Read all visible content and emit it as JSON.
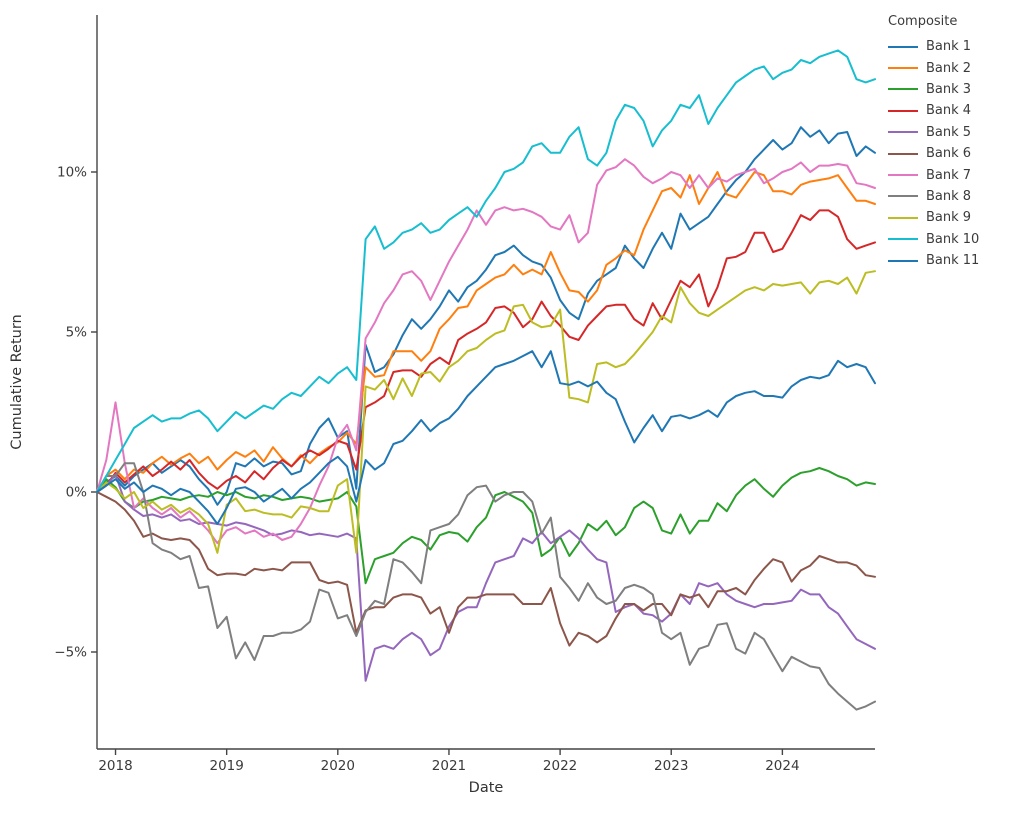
{
  "page": {
    "background": "#ffffff"
  },
  "axes": {
    "x": {
      "label": "Date",
      "tick_labels": [
        "2018",
        "2019",
        "2020",
        "2021",
        "2022",
        "2023",
        "2024"
      ]
    },
    "y": {
      "label": "Cumulative Return",
      "tick_labels": [
        "10%",
        "5%",
        "0%",
        "−5%"
      ]
    }
  },
  "legend": {
    "title": "Composite",
    "items": [
      {
        "label": "Bank 1",
        "color": "#1f77b4"
      },
      {
        "label": "Bank 2",
        "color": "#ff7f0e"
      },
      {
        "label": "Bank 3",
        "color": "#2ca02c"
      },
      {
        "label": "Bank 4",
        "color": "#d62728"
      },
      {
        "label": "Bank 5",
        "color": "#9467bd"
      },
      {
        "label": "Bank 6",
        "color": "#8c564b"
      },
      {
        "label": "Bank 7",
        "color": "#e377c2"
      },
      {
        "label": "Bank 8",
        "color": "#7f7f7f"
      },
      {
        "label": "Bank 9",
        "color": "#bcbd22"
      },
      {
        "label": "Bank 10",
        "color": "#17becf"
      },
      {
        "label": "Bank 11",
        "color": "#1f77b4"
      }
    ]
  },
  "chart_data": {
    "type": "line",
    "title": "",
    "xlabel": "Date",
    "ylabel": "Cumulative Return",
    "y_unit": "percent",
    "grid": false,
    "legend_position": "right",
    "x_axis": {
      "unit": "month (estimated)",
      "start": "2017-11",
      "end": "2024-11",
      "n_points": 85,
      "year_ticks": [
        {
          "label": "2018",
          "index": 2
        },
        {
          "label": "2019",
          "index": 14
        },
        {
          "label": "2020",
          "index": 26
        },
        {
          "label": "2021",
          "index": 38
        },
        {
          "label": "2022",
          "index": 50
        },
        {
          "label": "2023",
          "index": 62
        },
        {
          "label": "2024",
          "index": 74
        }
      ]
    },
    "y_axis": {
      "tick_values": [
        10,
        5,
        0,
        -5
      ],
      "range": [
        -8.0,
        14.9
      ]
    },
    "series": [
      {
        "name": "Bank 1",
        "color": "#1f77b4",
        "values": [
          0,
          0.3,
          0.5,
          0.2,
          0.5,
          0.7,
          0.9,
          0.6,
          0.8,
          1.0,
          0.8,
          0.4,
          0.1,
          -0.4,
          0.0,
          0.9,
          0.8,
          1.05,
          0.8,
          0.95,
          0.9,
          0.55,
          0.65,
          1.5,
          2.0,
          2.3,
          1.7,
          1.9,
          0.1,
          4.6,
          3.75,
          3.9,
          4.3,
          4.9,
          5.4,
          5.1,
          5.4,
          5.8,
          6.3,
          5.95,
          6.4,
          6.6,
          6.95,
          7.4,
          7.5,
          7.7,
          7.4,
          7.2,
          7.1,
          6.7,
          6.0,
          5.6,
          5.4,
          6.2,
          6.6,
          6.8,
          7.0,
          7.7,
          7.3,
          7.0,
          7.6,
          8.1,
          7.6,
          8.7,
          8.2,
          8.4,
          8.6,
          9.0,
          9.4,
          9.75,
          10.0,
          10.4,
          10.7,
          11.0,
          10.7,
          10.9,
          11.4,
          11.1,
          11.3,
          10.9,
          11.2,
          11.25,
          10.5,
          10.8,
          10.6
        ]
      },
      {
        "name": "Bank 2",
        "color": "#ff7f0e",
        "values": [
          0,
          0.5,
          0.7,
          0.4,
          0.7,
          0.6,
          0.9,
          1.1,
          0.85,
          1.05,
          1.2,
          0.9,
          1.1,
          0.7,
          1.0,
          1.25,
          1.1,
          1.3,
          0.95,
          1.4,
          1.05,
          0.8,
          1.15,
          0.9,
          1.2,
          1.4,
          1.55,
          1.85,
          1.5,
          3.9,
          3.6,
          3.65,
          4.4,
          4.4,
          4.4,
          4.1,
          4.4,
          5.1,
          5.4,
          5.75,
          5.8,
          6.3,
          6.5,
          6.7,
          6.8,
          7.1,
          6.8,
          6.95,
          6.8,
          7.5,
          6.85,
          6.3,
          6.25,
          5.95,
          6.3,
          7.1,
          7.3,
          7.55,
          7.4,
          8.2,
          8.8,
          9.4,
          9.5,
          9.2,
          9.9,
          9.0,
          9.5,
          10.0,
          9.3,
          9.2,
          9.6,
          10.0,
          9.9,
          9.4,
          9.4,
          9.3,
          9.6,
          9.7,
          9.75,
          9.8,
          9.9,
          9.5,
          9.1,
          9.1,
          9.0
        ]
      },
      {
        "name": "Bank 3",
        "color": "#2ca02c",
        "values": [
          0,
          0.4,
          0.15,
          -0.3,
          -0.5,
          -0.3,
          -0.25,
          -0.15,
          -0.2,
          -0.25,
          -0.15,
          -0.1,
          -0.15,
          0.0,
          -0.1,
          0.0,
          -0.15,
          -0.2,
          -0.1,
          -0.15,
          -0.25,
          -0.2,
          -0.15,
          -0.2,
          -0.3,
          -0.25,
          -0.2,
          0.0,
          -0.45,
          -2.85,
          -2.1,
          -2.0,
          -1.9,
          -1.6,
          -1.4,
          -1.5,
          -1.8,
          -1.35,
          -1.25,
          -1.3,
          -1.55,
          -1.1,
          -0.8,
          -0.1,
          0.0,
          -0.15,
          -0.3,
          -0.65,
          -2.0,
          -1.8,
          -1.4,
          -2.0,
          -1.6,
          -1.0,
          -1.2,
          -0.9,
          -1.35,
          -1.1,
          -0.5,
          -0.3,
          -0.5,
          -1.2,
          -1.3,
          -0.7,
          -1.3,
          -0.9,
          -0.9,
          -0.35,
          -0.6,
          -0.1,
          0.2,
          0.4,
          0.1,
          -0.15,
          0.2,
          0.45,
          0.6,
          0.65,
          0.75,
          0.65,
          0.5,
          0.4,
          0.2,
          0.3,
          0.25
        ]
      },
      {
        "name": "Bank 4",
        "color": "#d62728",
        "values": [
          0,
          0.2,
          0.6,
          0.3,
          0.55,
          0.8,
          0.5,
          0.7,
          0.95,
          0.7,
          1.0,
          0.6,
          0.3,
          0.1,
          0.35,
          0.5,
          0.3,
          0.65,
          0.4,
          0.75,
          1.0,
          0.8,
          1.1,
          1.3,
          1.15,
          1.35,
          1.6,
          1.5,
          0.7,
          2.65,
          2.8,
          3.0,
          3.75,
          3.8,
          3.8,
          3.6,
          4.0,
          4.2,
          4.0,
          4.75,
          4.95,
          5.1,
          5.3,
          5.75,
          5.8,
          5.6,
          5.15,
          5.4,
          5.95,
          5.5,
          5.2,
          4.85,
          4.75,
          5.2,
          5.5,
          5.8,
          5.85,
          5.85,
          5.4,
          5.2,
          5.9,
          5.4,
          6.0,
          6.6,
          6.4,
          6.8,
          5.8,
          6.4,
          7.3,
          7.35,
          7.5,
          8.1,
          8.1,
          7.5,
          7.6,
          8.1,
          8.65,
          8.5,
          8.8,
          8.8,
          8.6,
          7.9,
          7.6,
          7.7,
          7.8
        ]
      },
      {
        "name": "Bank 5",
        "color": "#9467bd",
        "values": [
          0,
          0.2,
          0.55,
          -0.3,
          -0.55,
          -0.75,
          -0.7,
          -0.8,
          -0.7,
          -0.9,
          -0.85,
          -1.0,
          -0.95,
          -1.0,
          -1.05,
          -0.95,
          -1.0,
          -1.1,
          -1.2,
          -1.35,
          -1.3,
          -1.2,
          -1.25,
          -1.35,
          -1.3,
          -1.35,
          -1.4,
          -1.3,
          -1.45,
          -5.9,
          -4.9,
          -4.8,
          -4.9,
          -4.6,
          -4.4,
          -4.6,
          -5.1,
          -4.9,
          -4.2,
          -3.75,
          -3.6,
          -3.6,
          -2.85,
          -2.2,
          -2.1,
          -2.0,
          -1.45,
          -1.6,
          -1.25,
          -1.6,
          -1.4,
          -1.2,
          -1.45,
          -1.8,
          -2.1,
          -2.2,
          -3.75,
          -3.6,
          -3.5,
          -3.8,
          -3.85,
          -4.05,
          -3.8,
          -3.2,
          -3.5,
          -2.85,
          -2.95,
          -2.85,
          -3.2,
          -3.4,
          -3.5,
          -3.6,
          -3.5,
          -3.5,
          -3.45,
          -3.4,
          -3.05,
          -3.2,
          -3.2,
          -3.6,
          -3.8,
          -4.2,
          -4.6,
          -4.75,
          -4.9
        ]
      },
      {
        "name": "Bank 6",
        "color": "#8c564b",
        "values": [
          0,
          -0.15,
          -0.3,
          -0.55,
          -0.9,
          -1.4,
          -1.3,
          -1.45,
          -1.5,
          -1.45,
          -1.5,
          -1.8,
          -2.4,
          -2.6,
          -2.55,
          -2.55,
          -2.6,
          -2.4,
          -2.45,
          -2.4,
          -2.45,
          -2.2,
          -2.2,
          -2.2,
          -2.75,
          -2.85,
          -2.8,
          -2.9,
          -4.4,
          -3.7,
          -3.6,
          -3.6,
          -3.3,
          -3.2,
          -3.2,
          -3.3,
          -3.8,
          -3.6,
          -4.4,
          -3.6,
          -3.3,
          -3.3,
          -3.2,
          -3.2,
          -3.2,
          -3.2,
          -3.5,
          -3.5,
          -3.5,
          -3.0,
          -4.1,
          -4.8,
          -4.4,
          -4.5,
          -4.7,
          -4.5,
          -3.95,
          -3.5,
          -3.5,
          -3.7,
          -3.5,
          -3.5,
          -3.85,
          -3.2,
          -3.3,
          -3.2,
          -3.6,
          -3.1,
          -3.1,
          -3.0,
          -3.2,
          -2.75,
          -2.4,
          -2.1,
          -2.2,
          -2.8,
          -2.45,
          -2.3,
          -2.0,
          -2.1,
          -2.2,
          -2.2,
          -2.3,
          -2.6,
          -2.65
        ]
      },
      {
        "name": "Bank 7",
        "color": "#e377c2",
        "values": [
          0,
          1.0,
          2.8,
          0.9,
          -0.5,
          -0.2,
          -0.5,
          -0.7,
          -0.5,
          -0.8,
          -0.6,
          -0.9,
          -1.2,
          -1.6,
          -1.2,
          -1.1,
          -1.3,
          -1.2,
          -1.4,
          -1.3,
          -1.5,
          -1.4,
          -1.0,
          -0.5,
          0.2,
          0.8,
          1.7,
          2.1,
          1.3,
          4.8,
          5.3,
          5.9,
          6.3,
          6.8,
          6.9,
          6.6,
          6.0,
          6.6,
          7.2,
          7.7,
          8.2,
          8.8,
          8.35,
          8.8,
          8.9,
          8.8,
          8.85,
          8.75,
          8.6,
          8.3,
          8.2,
          8.65,
          7.8,
          8.1,
          9.6,
          10.05,
          10.15,
          10.4,
          10.2,
          9.85,
          9.65,
          9.8,
          10.0,
          9.9,
          9.5,
          9.9,
          9.5,
          9.8,
          9.7,
          9.9,
          10.0,
          10.1,
          9.65,
          9.8,
          10.0,
          10.1,
          10.3,
          10.0,
          10.2,
          10.2,
          10.25,
          10.2,
          9.65,
          9.6,
          9.5
        ]
      },
      {
        "name": "Bank 8",
        "color": "#7f7f7f",
        "values": [
          0,
          0.5,
          0.5,
          0.9,
          0.9,
          0.0,
          -1.6,
          -1.8,
          -1.9,
          -2.1,
          -2.0,
          -3.0,
          -2.95,
          -4.25,
          -3.9,
          -5.2,
          -4.7,
          -5.25,
          -4.5,
          -4.5,
          -4.4,
          -4.4,
          -4.3,
          -4.05,
          -3.05,
          -3.15,
          -3.95,
          -3.85,
          -4.5,
          -3.75,
          -3.4,
          -3.5,
          -2.1,
          -2.2,
          -2.5,
          -2.85,
          -1.2,
          -1.1,
          -1.0,
          -0.7,
          -0.1,
          0.15,
          0.2,
          -0.3,
          -0.1,
          0.0,
          0.0,
          -0.3,
          -1.3,
          -0.8,
          -2.65,
          -3.0,
          -3.4,
          -2.85,
          -3.3,
          -3.5,
          -3.4,
          -3.0,
          -2.9,
          -3.0,
          -3.2,
          -4.4,
          -4.6,
          -4.4,
          -5.4,
          -4.9,
          -4.8,
          -4.15,
          -4.1,
          -4.9,
          -5.05,
          -4.4,
          -4.6,
          -5.1,
          -5.6,
          -5.15,
          -5.3,
          -5.45,
          -5.5,
          -6.0,
          -6.3,
          -6.55,
          -6.8,
          -6.7,
          -6.55
        ]
      },
      {
        "name": "Bank 9",
        "color": "#bcbd22",
        "values": [
          0,
          0.3,
          0.1,
          -0.2,
          0.0,
          -0.5,
          -0.3,
          -0.55,
          -0.4,
          -0.65,
          -0.5,
          -0.7,
          -1.0,
          -1.9,
          -0.4,
          -0.2,
          -0.6,
          -0.55,
          -0.65,
          -0.7,
          -0.7,
          -0.8,
          -0.45,
          -0.5,
          -0.6,
          -0.6,
          0.2,
          0.4,
          -1.9,
          3.3,
          3.2,
          3.5,
          2.9,
          3.55,
          3.0,
          3.7,
          3.75,
          3.45,
          3.9,
          4.1,
          4.4,
          4.5,
          4.75,
          4.95,
          5.05,
          5.8,
          5.85,
          5.3,
          5.15,
          5.2,
          5.7,
          2.95,
          2.9,
          2.8,
          4.0,
          4.05,
          3.9,
          4.0,
          4.3,
          4.65,
          5.0,
          5.5,
          5.3,
          6.4,
          5.9,
          5.6,
          5.5,
          5.7,
          5.9,
          6.1,
          6.3,
          6.4,
          6.3,
          6.5,
          6.45,
          6.5,
          6.55,
          6.2,
          6.55,
          6.6,
          6.5,
          6.7,
          6.2,
          6.85,
          6.9
        ]
      },
      {
        "name": "Bank 10",
        "color": "#17becf",
        "values": [
          0,
          0.5,
          1.0,
          1.5,
          2.0,
          2.2,
          2.4,
          2.2,
          2.3,
          2.3,
          2.45,
          2.55,
          2.3,
          1.9,
          2.2,
          2.5,
          2.3,
          2.5,
          2.7,
          2.6,
          2.9,
          3.1,
          3.0,
          3.3,
          3.6,
          3.4,
          3.7,
          3.9,
          3.5,
          7.9,
          8.3,
          7.6,
          7.8,
          8.1,
          8.2,
          8.4,
          8.1,
          8.2,
          8.5,
          8.7,
          8.9,
          8.6,
          9.1,
          9.5,
          10.0,
          10.1,
          10.3,
          10.8,
          10.9,
          10.6,
          10.6,
          11.1,
          11.4,
          10.4,
          10.2,
          10.6,
          11.6,
          12.1,
          12.0,
          11.6,
          10.8,
          11.3,
          11.6,
          12.1,
          12.0,
          12.4,
          11.5,
          12.0,
          12.4,
          12.8,
          13.0,
          13.2,
          13.3,
          12.9,
          13.1,
          13.2,
          13.5,
          13.4,
          13.6,
          13.7,
          13.8,
          13.6,
          12.9,
          12.8,
          12.9
        ]
      },
      {
        "name": "Bank 11",
        "color": "#1f77b4",
        "values": [
          0,
          0.2,
          0.4,
          0.1,
          0.3,
          0.0,
          0.2,
          0.1,
          -0.1,
          0.1,
          0.0,
          -0.3,
          -0.6,
          -1.0,
          -0.5,
          0.1,
          0.15,
          0.0,
          -0.3,
          -0.1,
          0.1,
          -0.2,
          0.1,
          0.3,
          0.6,
          0.9,
          1.1,
          0.8,
          -0.3,
          1.0,
          0.7,
          0.9,
          1.5,
          1.6,
          1.9,
          2.25,
          1.9,
          2.15,
          2.3,
          2.6,
          3.0,
          3.3,
          3.6,
          3.9,
          4.0,
          4.1,
          4.25,
          4.4,
          3.9,
          4.4,
          3.4,
          3.35,
          3.45,
          3.3,
          3.45,
          3.1,
          2.9,
          2.2,
          1.55,
          2.0,
          2.4,
          1.9,
          2.35,
          2.4,
          2.3,
          2.4,
          2.55,
          2.35,
          2.8,
          3.0,
          3.1,
          3.15,
          3.0,
          3.0,
          2.95,
          3.3,
          3.5,
          3.6,
          3.55,
          3.65,
          4.1,
          3.9,
          4.0,
          3.9,
          3.4
        ]
      }
    ]
  }
}
